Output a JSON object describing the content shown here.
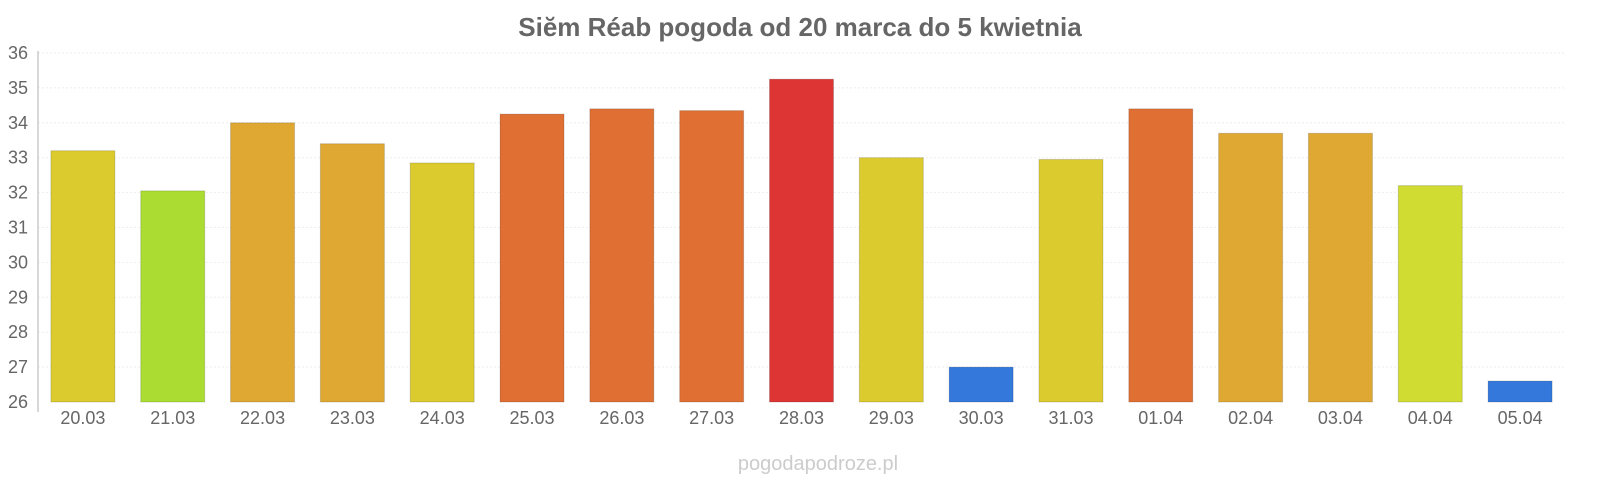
{
  "chart_data": {
    "type": "bar",
    "title": "Siĕm Réab pogoda od 20 marca do 5 kwietnia",
    "xlabel": "",
    "ylabel": "",
    "ylim": [
      26,
      36
    ],
    "yticks": [
      "26",
      "27",
      "28",
      "29",
      "30",
      "31",
      "32",
      "33",
      "34",
      "35",
      "36"
    ],
    "grid": true,
    "categories": [
      "20.03",
      "21.03",
      "22.03",
      "23.03",
      "24.03",
      "25.03",
      "26.03",
      "27.03",
      "28.03",
      "29.03",
      "30.03",
      "31.03",
      "01.04",
      "02.04",
      "03.04",
      "04.04",
      "05.04"
    ],
    "values": [
      33.2,
      32.05,
      34.0,
      33.4,
      32.85,
      34.25,
      34.4,
      34.35,
      35.25,
      33.0,
      27.0,
      32.95,
      34.4,
      33.7,
      33.7,
      32.2,
      26.6
    ],
    "colors": [
      "#dccb2f",
      "#aadc32",
      "#dea832",
      "#dea832",
      "#dccb2f",
      "#df6f32",
      "#df6f32",
      "#df6f32",
      "#dc3534",
      "#dccb2f",
      "#3478dc",
      "#dccb2f",
      "#df6f32",
      "#dea832",
      "#dea832",
      "#d0dc32",
      "#3478dc"
    ]
  },
  "watermark": "pogodapodroze.pl"
}
